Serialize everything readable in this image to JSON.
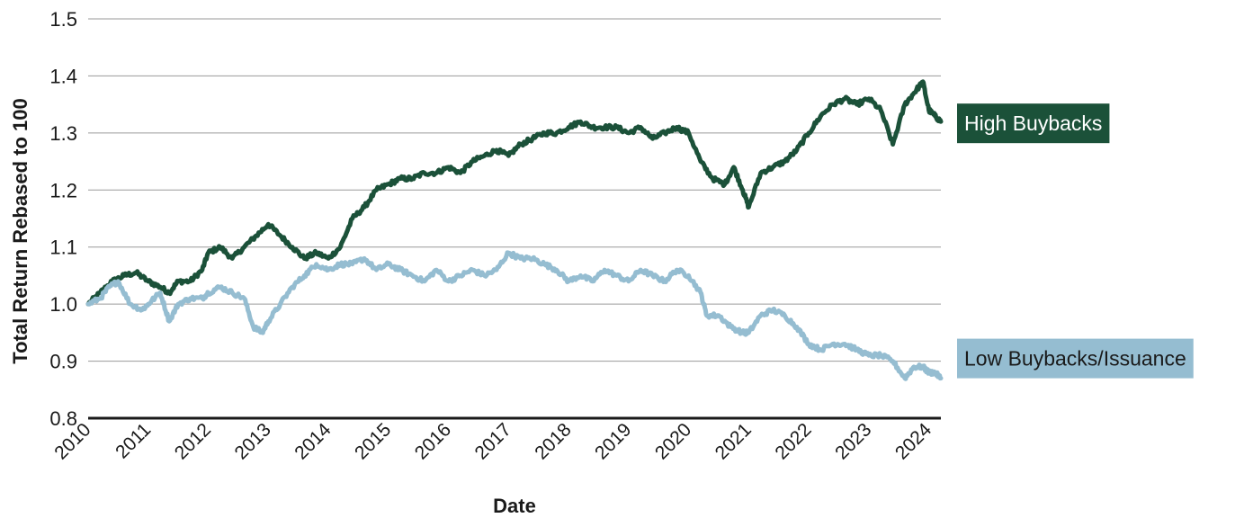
{
  "chart_data": {
    "type": "line",
    "xlabel": "Date",
    "ylabel": "Total Return Rebased to 100",
    "ylim": [
      0.8,
      1.5
    ],
    "yticks": [
      "0.8",
      "0.9",
      "1.0",
      "1.1",
      "1.2",
      "1.3",
      "1.4",
      "1.5"
    ],
    "xlim": [
      2010.0,
      2024.2
    ],
    "xticks": [
      "2010",
      "2011",
      "2012",
      "2013",
      "2014",
      "2015",
      "2016",
      "2017",
      "2018",
      "2019",
      "2020",
      "2021",
      "2022",
      "2023",
      "2024"
    ],
    "grid": true,
    "legend": "right (direct labels at line ends)",
    "series": [
      {
        "name": "High Buybacks",
        "color": "#1b5139",
        "label_text_color": "#ffffff",
        "x": [
          2010.0,
          2010.2,
          2010.4,
          2010.6,
          2010.8,
          2011.0,
          2011.2,
          2011.35,
          2011.5,
          2011.7,
          2011.9,
          2012.0,
          2012.2,
          2012.4,
          2012.6,
          2012.8,
          2013.0,
          2013.2,
          2013.4,
          2013.6,
          2013.8,
          2014.0,
          2014.2,
          2014.4,
          2014.6,
          2014.8,
          2015.0,
          2015.2,
          2015.4,
          2015.6,
          2015.8,
          2016.0,
          2016.2,
          2016.4,
          2016.6,
          2016.8,
          2017.0,
          2017.2,
          2017.4,
          2017.6,
          2017.8,
          2018.0,
          2018.2,
          2018.4,
          2018.6,
          2018.8,
          2019.0,
          2019.2,
          2019.4,
          2019.6,
          2019.8,
          2020.0,
          2020.2,
          2020.4,
          2020.6,
          2020.75,
          2020.9,
          2021.0,
          2021.2,
          2021.4,
          2021.6,
          2021.8,
          2022.0,
          2022.2,
          2022.4,
          2022.6,
          2022.8,
          2023.0,
          2023.2,
          2023.4,
          2023.6,
          2023.75,
          2023.9,
          2024.0,
          2024.1,
          2024.2
        ],
        "y": [
          1.0,
          1.02,
          1.04,
          1.05,
          1.055,
          1.04,
          1.03,
          1.02,
          1.04,
          1.04,
          1.06,
          1.09,
          1.1,
          1.08,
          1.1,
          1.12,
          1.14,
          1.12,
          1.1,
          1.08,
          1.09,
          1.08,
          1.1,
          1.15,
          1.17,
          1.2,
          1.21,
          1.22,
          1.22,
          1.23,
          1.23,
          1.24,
          1.23,
          1.25,
          1.26,
          1.27,
          1.26,
          1.28,
          1.29,
          1.3,
          1.3,
          1.31,
          1.32,
          1.31,
          1.31,
          1.31,
          1.3,
          1.31,
          1.29,
          1.3,
          1.31,
          1.3,
          1.25,
          1.22,
          1.21,
          1.24,
          1.2,
          1.17,
          1.23,
          1.24,
          1.25,
          1.27,
          1.3,
          1.33,
          1.35,
          1.36,
          1.35,
          1.36,
          1.34,
          1.28,
          1.35,
          1.37,
          1.39,
          1.34,
          1.33,
          1.32
        ]
      },
      {
        "name": "Low Buybacks/Issuance",
        "color": "#95bdd1",
        "label_text_color": "#1a1a1a",
        "x": [
          2010.0,
          2010.2,
          2010.35,
          2010.5,
          2010.7,
          2010.9,
          2011.0,
          2011.2,
          2011.35,
          2011.5,
          2011.7,
          2011.9,
          2012.0,
          2012.2,
          2012.4,
          2012.6,
          2012.75,
          2012.9,
          2013.0,
          2013.2,
          2013.4,
          2013.6,
          2013.8,
          2014.0,
          2014.2,
          2014.4,
          2014.6,
          2014.8,
          2015.0,
          2015.2,
          2015.4,
          2015.6,
          2015.8,
          2016.0,
          2016.2,
          2016.4,
          2016.6,
          2016.8,
          2017.0,
          2017.2,
          2017.4,
          2017.6,
          2017.8,
          2018.0,
          2018.2,
          2018.4,
          2018.6,
          2018.8,
          2019.0,
          2019.2,
          2019.4,
          2019.6,
          2019.8,
          2020.0,
          2020.2,
          2020.3,
          2020.5,
          2020.7,
          2020.9,
          2021.0,
          2021.2,
          2021.4,
          2021.6,
          2021.8,
          2022.0,
          2022.2,
          2022.4,
          2022.6,
          2022.8,
          2023.0,
          2023.2,
          2023.4,
          2023.6,
          2023.75,
          2023.9,
          2024.0,
          2024.1,
          2024.2
        ],
        "y": [
          1.0,
          1.01,
          1.03,
          1.04,
          1.0,
          0.99,
          1.0,
          1.02,
          0.97,
          1.0,
          1.01,
          1.01,
          1.02,
          1.03,
          1.02,
          1.01,
          0.96,
          0.95,
          0.97,
          1.0,
          1.03,
          1.05,
          1.07,
          1.06,
          1.07,
          1.07,
          1.08,
          1.06,
          1.07,
          1.06,
          1.05,
          1.04,
          1.06,
          1.04,
          1.05,
          1.06,
          1.05,
          1.06,
          1.09,
          1.08,
          1.08,
          1.07,
          1.06,
          1.04,
          1.05,
          1.04,
          1.06,
          1.05,
          1.04,
          1.06,
          1.05,
          1.04,
          1.06,
          1.05,
          1.02,
          0.98,
          0.98,
          0.96,
          0.95,
          0.95,
          0.98,
          0.99,
          0.98,
          0.96,
          0.93,
          0.92,
          0.93,
          0.93,
          0.92,
          0.91,
          0.91,
          0.9,
          0.87,
          0.89,
          0.89,
          0.88,
          0.88,
          0.87
        ]
      }
    ]
  }
}
